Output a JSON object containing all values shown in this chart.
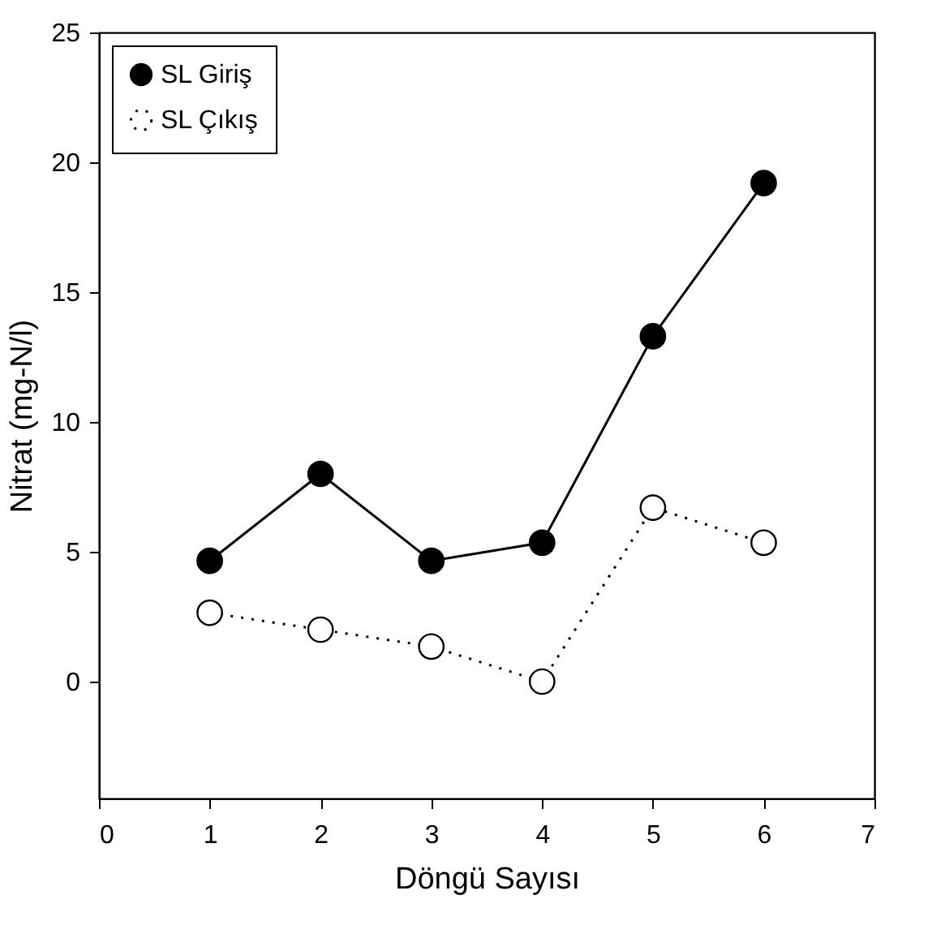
{
  "chart_data": {
    "type": "line",
    "xlabel": "Döngü Sayısı",
    "ylabel": "Nitrat (mg-N/l)",
    "x": [
      1,
      2,
      3,
      4,
      5,
      6
    ],
    "series": [
      {
        "name": "SL Giriş",
        "color": "#000000",
        "line_style": "solid",
        "marker": "circle",
        "values": [
          4.65,
          8.0,
          4.65,
          5.35,
          13.3,
          19.2
        ]
      },
      {
        "name": "SL Çıkış",
        "color": "#000000",
        "line_style": "dotted",
        "marker": "circle",
        "values": [
          2.65,
          2.0,
          1.35,
          0.0,
          6.7,
          5.35
        ]
      }
    ],
    "xlim": [
      0,
      7
    ],
    "xticks": [
      0,
      1,
      2,
      3,
      4,
      5,
      6,
      7
    ],
    "ylim": [
      -4.5,
      25
    ],
    "yticks": [
      0,
      5,
      10,
      15,
      20,
      25
    ],
    "grid": false,
    "legend": "top left"
  }
}
